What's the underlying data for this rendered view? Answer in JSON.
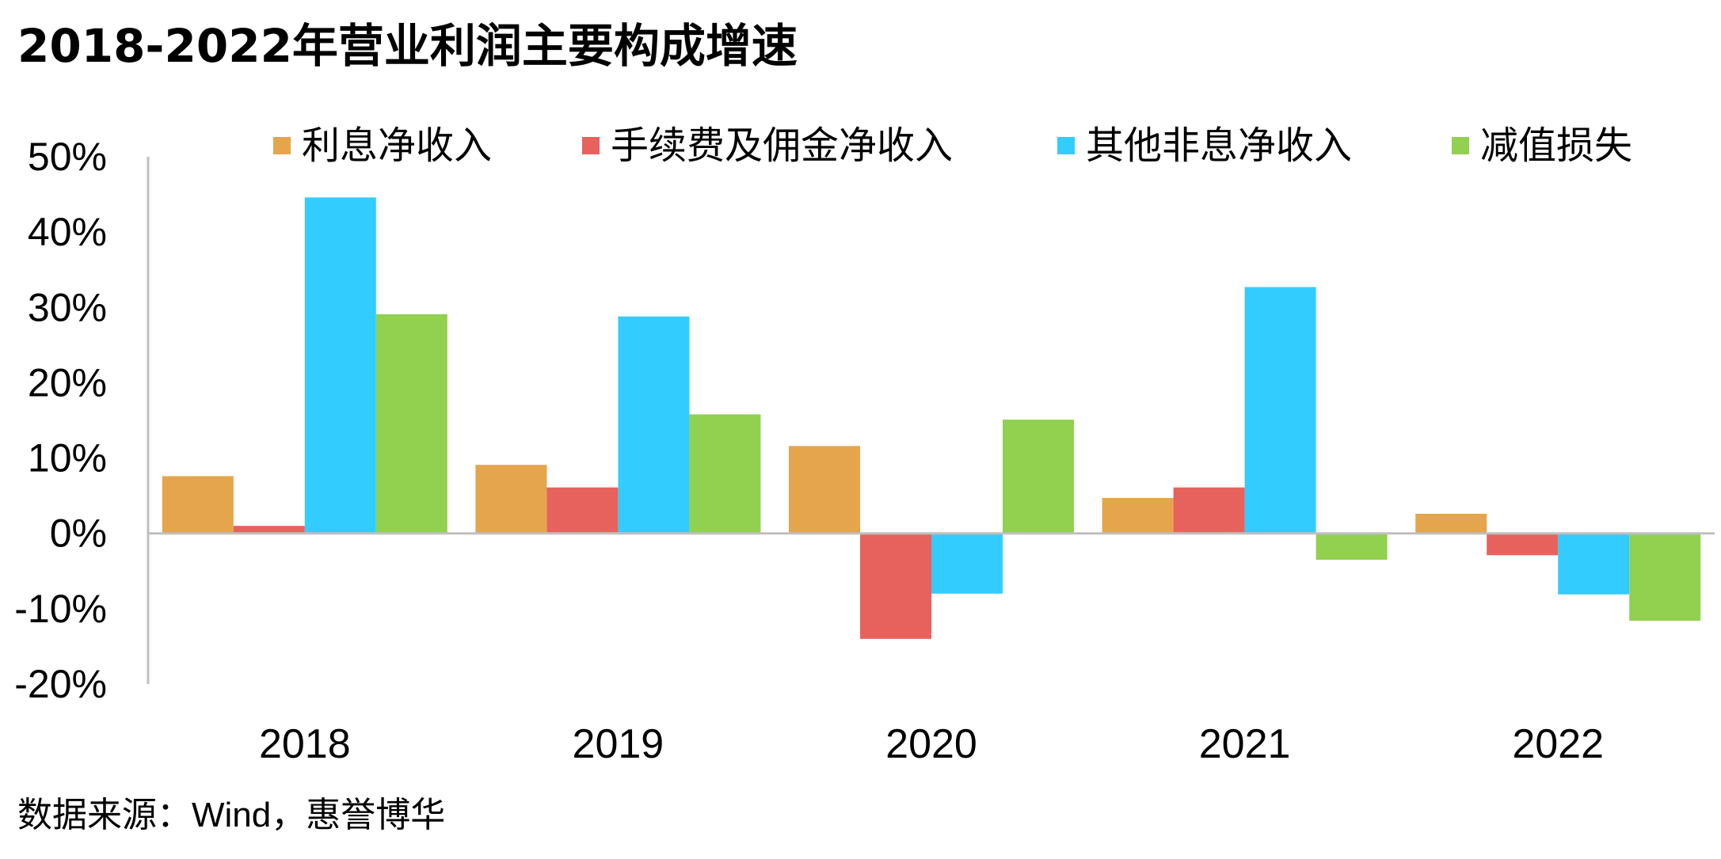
{
  "title": "2018-2022年营业利润主要构成增速",
  "source": "数据来源：Wind，惠誉博华",
  "chart_data": {
    "type": "bar",
    "title": "2018-2022年营业利润主要构成增速",
    "categories": [
      "2018",
      "2019",
      "2020",
      "2021",
      "2022"
    ],
    "series": [
      {
        "name": "利息净收入",
        "color": "#E5A54C",
        "values": [
          7.6,
          9.1,
          11.6,
          4.7,
          2.6
        ]
      },
      {
        "name": "手续费及佣金净收入",
        "color": "#E8625D",
        "values": [
          1.0,
          6.1,
          -14.0,
          6.1,
          -2.9
        ]
      },
      {
        "name": "其他非息净收入",
        "color": "#33CCFF",
        "values": [
          44.6,
          28.8,
          -8.0,
          32.7,
          -8.1
        ]
      },
      {
        "name": "减值损失",
        "color": "#92D050",
        "values": [
          29.1,
          15.8,
          15.1,
          -3.5,
          -11.6
        ]
      }
    ],
    "ylim": [
      -20,
      50
    ],
    "yticks": [
      50,
      40,
      30,
      20,
      10,
      0,
      -10,
      -20
    ],
    "ytick_labels": [
      "50%",
      "40%",
      "30%",
      "20%",
      "10%",
      "0%",
      "-10%",
      "-20%"
    ],
    "xlabel": "",
    "ylabel": "",
    "legend_position": "top",
    "grid": false,
    "axis_color": "#BFBFBF"
  }
}
